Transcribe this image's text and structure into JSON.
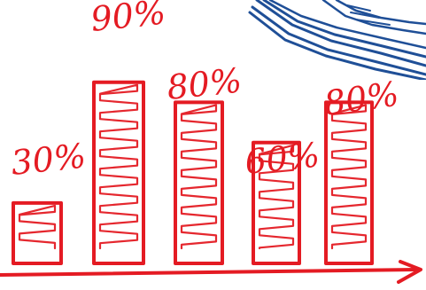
{
  "chart_data": {
    "type": "bar",
    "values": [
      30,
      90,
      80,
      60,
      80
    ],
    "data_labels": [
      "30%",
      "90%",
      "80%",
      "60%",
      "80%"
    ],
    "ylim": [
      0,
      100
    ],
    "grid": false,
    "legend": "none"
  },
  "colors": {
    "bars": "#e41b23",
    "axis": "#e41b23",
    "notebook": "#1f4f97",
    "background": "#ffffff"
  },
  "decoration": {
    "icon": "notebook-stack-icon"
  }
}
